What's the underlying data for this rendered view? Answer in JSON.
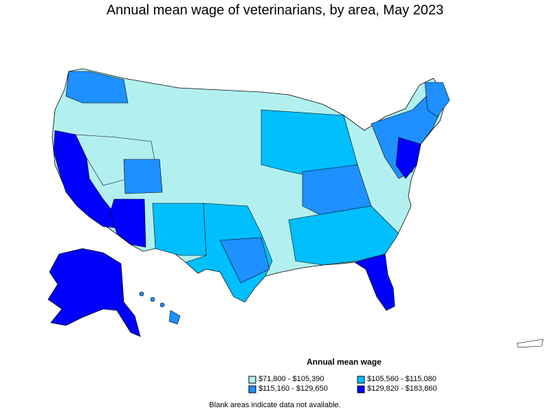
{
  "title": "Annual mean wage of veterinarians, by area, May 2023",
  "legend": {
    "title": "Annual mean wage",
    "items": [
      {
        "label": "$71,800 - $105,390",
        "color": "#b2f0f0"
      },
      {
        "label": "$105,560 - $115,080",
        "color": "#00bfff"
      },
      {
        "label": "$115,160 - $129,650",
        "color": "#1e90ff"
      },
      {
        "label": "$129,820 - $183,860",
        "color": "#0000ff"
      }
    ]
  },
  "note": "Blank areas indicate data not available."
}
